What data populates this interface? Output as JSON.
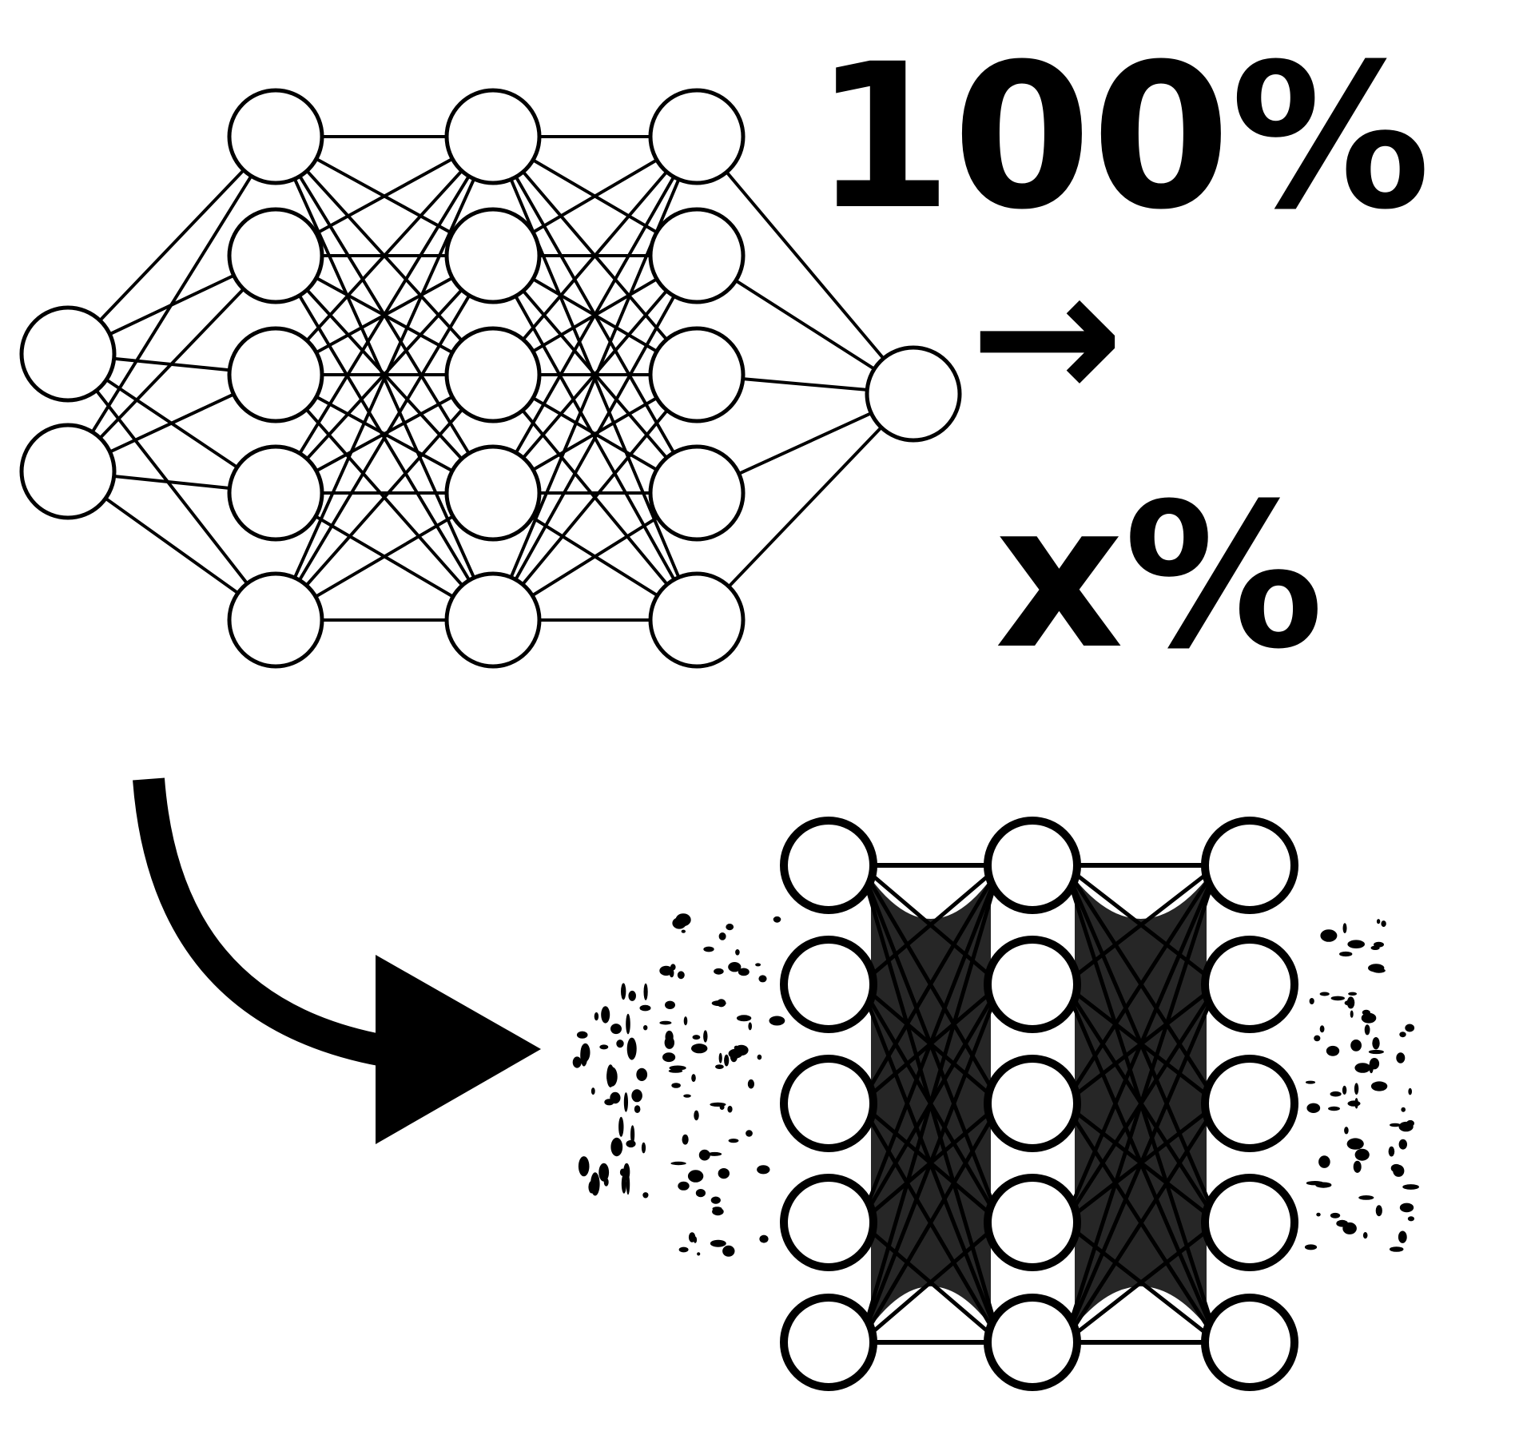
{
  "labels": {
    "from_percent": "100%",
    "arrow": "→",
    "to_percent": "x%"
  },
  "network": {
    "layers": [
      2,
      5,
      5,
      5,
      1
    ],
    "description_icons": {
      "arrow_icon": "curved-arrow-icon"
    }
  },
  "pruned_network": {
    "layers": [
      0,
      5,
      5,
      5,
      0
    ]
  },
  "colors": {
    "ink": "#000000",
    "background": "#ffffff"
  }
}
